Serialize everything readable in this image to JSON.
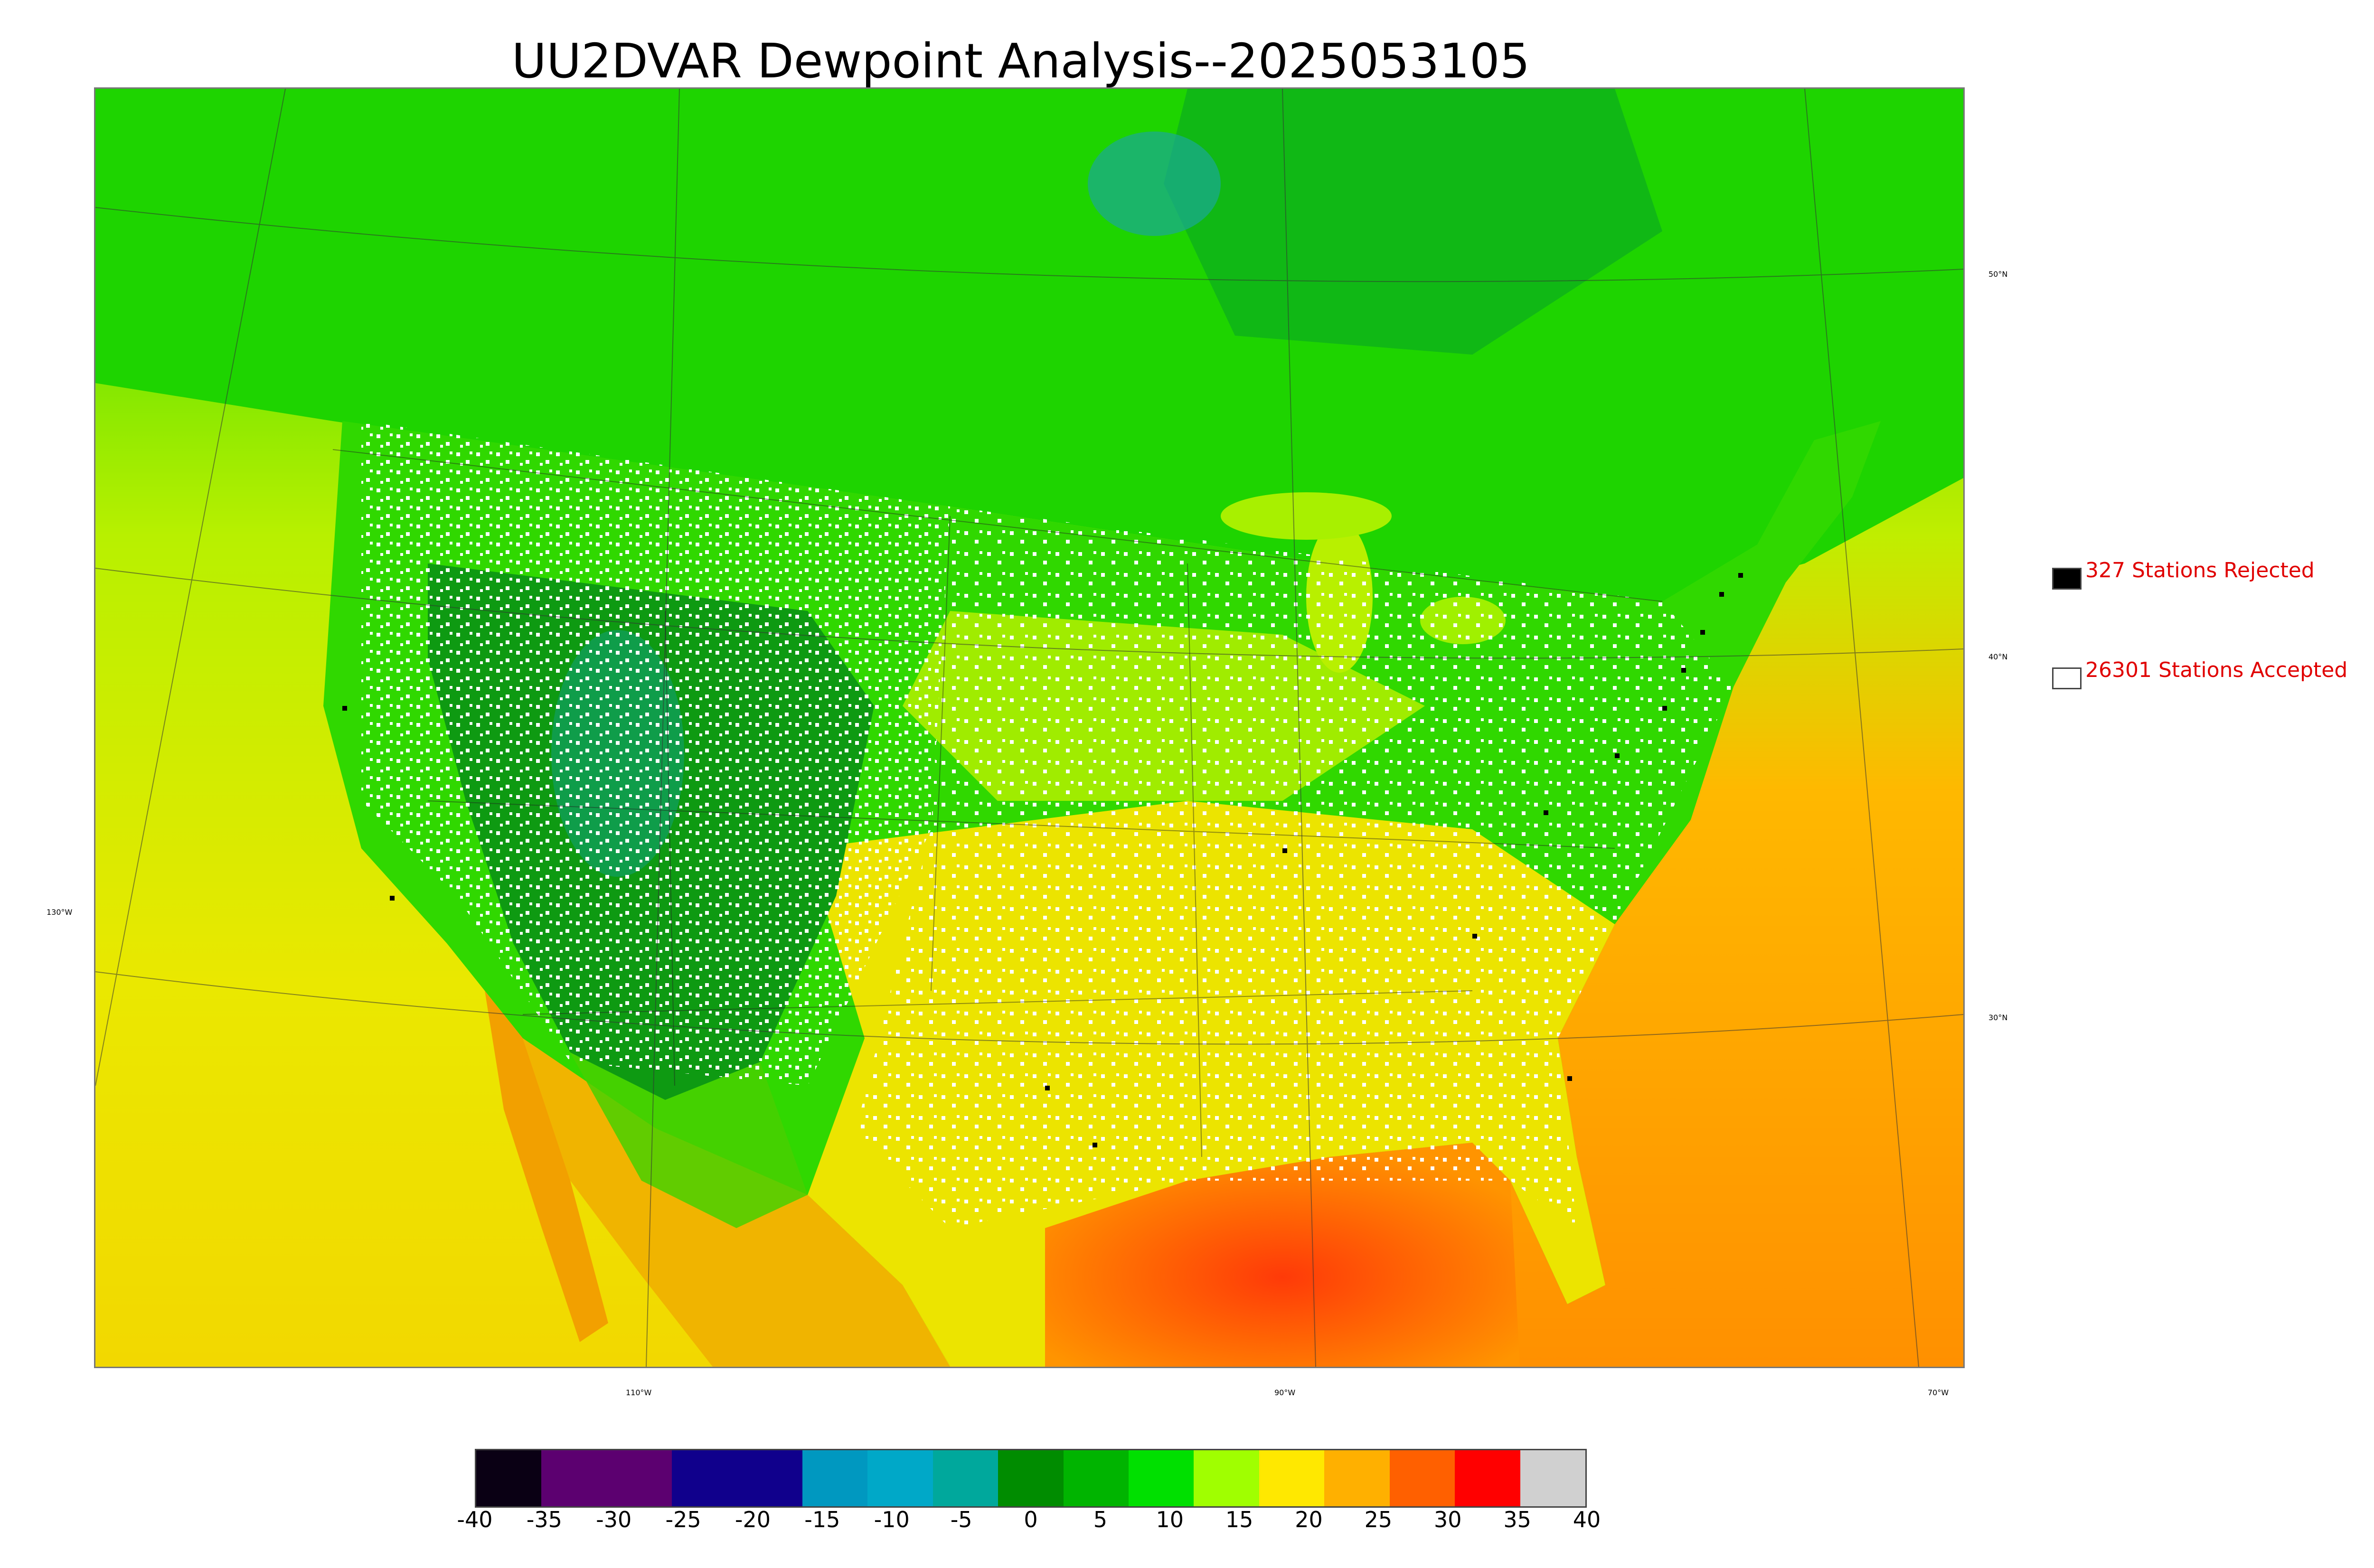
{
  "title": "UU2DVAR Dewpoint Analysis--2025053105",
  "legend": {
    "rejected": {
      "label": "327 Stations Rejected",
      "color": "#000000"
    },
    "accepted": {
      "label": "26301 Stations Accepted",
      "color": "#ffffff"
    }
  },
  "lon_labels": [
    "130°W",
    "110°W",
    "90°W",
    "70°W"
  ],
  "lat_labels": [
    "50°N",
    "40°N",
    "30°N"
  ],
  "colorbar": {
    "ticks": [
      "-40",
      "-35",
      "-30",
      "-25",
      "-20",
      "-15",
      "-10",
      "-5",
      "0",
      "5",
      "10",
      "15",
      "20",
      "25",
      "30",
      "35",
      "40"
    ],
    "colors": [
      "#0a0014",
      "#5c0070",
      "#5c0070",
      "#10008c",
      "#10008c",
      "#0098c0",
      "#00a8c8",
      "#00a89c",
      "#008c00",
      "#00b400",
      "#00e000",
      "#a0ff00",
      "#ffe800",
      "#ffb000",
      "#ff6000",
      "#ff0000",
      "#d0d0d0"
    ]
  },
  "colors": {
    "ocean_warm": "#ff9a1a",
    "ocean_yellow": "#e4ee00",
    "land_green": "#18d800",
    "rockies_dark": "#0e9a12",
    "gulf_red": "#ff4a10"
  }
}
